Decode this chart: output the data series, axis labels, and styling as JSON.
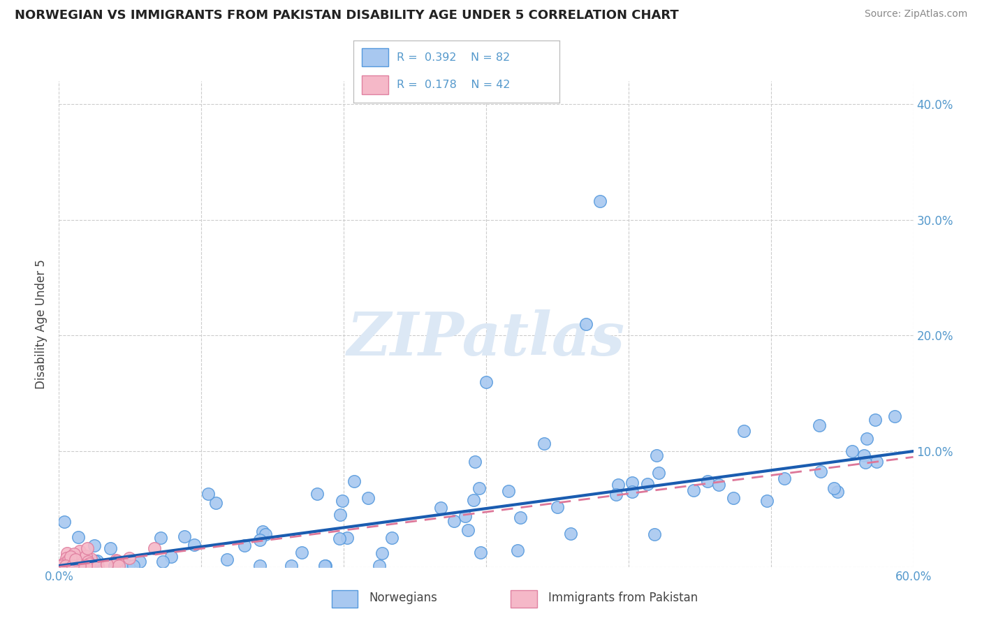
{
  "title": "NORWEGIAN VS IMMIGRANTS FROM PAKISTAN DISABILITY AGE UNDER 5 CORRELATION CHART",
  "source": "Source: ZipAtlas.com",
  "ylabel": "Disability Age Under 5",
  "xmin": 0.0,
  "xmax": 0.6,
  "ymin": 0.0,
  "ymax": 0.42,
  "r_norwegian": 0.392,
  "n_norwegian": 82,
  "r_pakistan": 0.178,
  "n_pakistan": 42,
  "color_norwegian_face": "#a8c8f0",
  "color_norwegian_edge": "#5599dd",
  "color_pakistan_face": "#f5b8c8",
  "color_pakistan_edge": "#e080a0",
  "color_line_norwegian": "#1a5cb0",
  "color_line_pakistan": "#dd7799",
  "color_tick": "#5599cc",
  "watermark": "ZIPatlas",
  "norw_trend_x0": 0.0,
  "norw_trend_y0": 0.001,
  "norw_trend_x1": 0.6,
  "norw_trend_y1": 0.1,
  "pak_trend_x0": 0.0,
  "pak_trend_y0": 0.001,
  "pak_trend_x1": 0.6,
  "pak_trend_y1": 0.095
}
